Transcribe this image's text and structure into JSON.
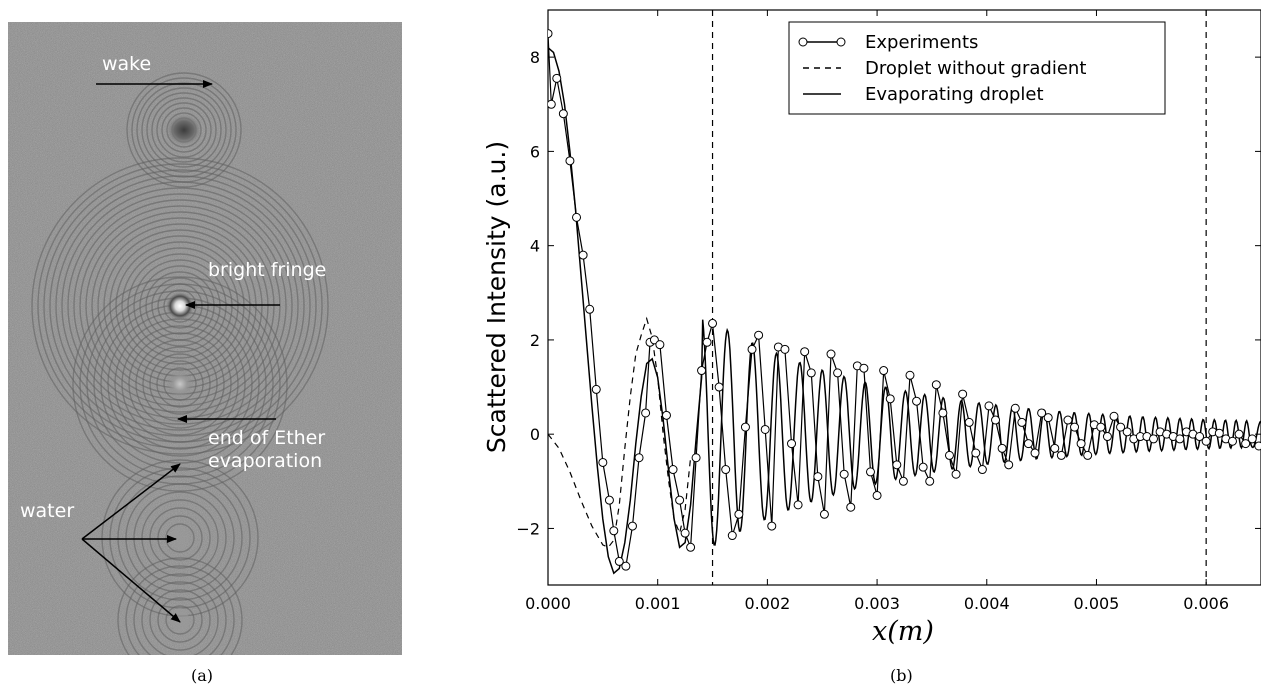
{
  "panel_a": {
    "caption": "(a)",
    "annotations": {
      "wake": "wake",
      "bright_fringe": "bright fringe",
      "end_line1": "end of Ether",
      "end_line2": "evaporation",
      "water": "water"
    }
  },
  "panel_b": {
    "caption": "(b)"
  },
  "chart_data": {
    "type": "line",
    "xlabel": "x(m)",
    "ylabel": "Scattered Intensity (a.u.)",
    "xlim": [
      0,
      0.0065
    ],
    "ylim": [
      -3.2,
      9.0
    ],
    "xticks": [
      0.0,
      0.001,
      0.002,
      0.003,
      0.004,
      0.005,
      0.006
    ],
    "xtick_labels": [
      "0.000",
      "0.001",
      "0.002",
      "0.003",
      "0.004",
      "0.005",
      "0.006"
    ],
    "yticks": [
      -2,
      0,
      2,
      4,
      6,
      8
    ],
    "ytick_labels": [
      "−2",
      "0",
      "2",
      "4",
      "6",
      "8"
    ],
    "vlines": [
      0.0015,
      0.006
    ],
    "legend_position": "top-right",
    "legend": [
      "Experiments",
      "Droplet without gradient",
      "Evaporating droplet"
    ],
    "series": [
      {
        "name": "Experiments",
        "style": "line-with-open-circles",
        "x": [
          0.0,
          3e-05,
          8e-05,
          0.00014,
          0.0002,
          0.00026,
          0.00032,
          0.00038,
          0.00044,
          0.0005,
          0.00056,
          0.0006,
          0.00065,
          0.00071,
          0.00077,
          0.00083,
          0.00089,
          0.00093,
          0.00097,
          0.00102,
          0.00108,
          0.00114,
          0.0012,
          0.00125,
          0.0013,
          0.00135,
          0.0014,
          0.00145,
          0.0015,
          0.00156,
          0.00162,
          0.00168,
          0.00174,
          0.0018,
          0.00186,
          0.00192,
          0.00198,
          0.00204,
          0.0021,
          0.00216,
          0.00222,
          0.00228,
          0.00234,
          0.0024,
          0.00246,
          0.00252,
          0.00258,
          0.00264,
          0.0027,
          0.00276,
          0.00282,
          0.00288,
          0.00294,
          0.003,
          0.00306,
          0.00312,
          0.00318,
          0.00324,
          0.0033,
          0.00336,
          0.00342,
          0.00348,
          0.00354,
          0.0036,
          0.00366,
          0.00372,
          0.00378,
          0.00384,
          0.0039,
          0.00396,
          0.00402,
          0.00408,
          0.00414,
          0.0042,
          0.00426,
          0.00432,
          0.00438,
          0.00444,
          0.0045,
          0.00456,
          0.00462,
          0.00468,
          0.00474,
          0.0048,
          0.00486,
          0.00492,
          0.00498,
          0.00504,
          0.0051,
          0.00516,
          0.00522,
          0.00528,
          0.00534,
          0.0054,
          0.00546,
          0.00552,
          0.00558,
          0.00564,
          0.0057,
          0.00576,
          0.00582,
          0.00588,
          0.00594,
          0.006,
          0.00606,
          0.00612,
          0.00618,
          0.00624,
          0.0063,
          0.00636,
          0.00642,
          0.00648,
          0.00654
        ],
        "y": [
          8.5,
          7.0,
          7.55,
          6.8,
          5.8,
          4.6,
          3.8,
          2.65,
          0.95,
          -0.6,
          -1.4,
          -2.05,
          -2.7,
          -2.8,
          -1.95,
          -0.5,
          0.45,
          1.95,
          2.0,
          1.9,
          0.4,
          -0.75,
          -1.4,
          -2.1,
          -2.4,
          -0.5,
          1.35,
          1.95,
          2.35,
          1.0,
          -0.75,
          -2.15,
          -1.7,
          0.15,
          1.8,
          2.1,
          0.1,
          -1.95,
          1.85,
          1.8,
          -0.2,
          -1.5,
          1.75,
          1.3,
          -0.9,
          -1.7,
          1.7,
          1.3,
          -0.85,
          -1.55,
          1.45,
          1.4,
          -0.8,
          -1.3,
          1.35,
          0.75,
          -0.65,
          -1.0,
          1.25,
          0.7,
          -0.7,
          -1.0,
          1.05,
          0.45,
          -0.45,
          -0.85,
          0.85,
          0.25,
          -0.4,
          -0.75,
          0.6,
          0.3,
          -0.3,
          -0.65,
          0.55,
          0.25,
          -0.2,
          -0.4,
          0.45,
          0.35,
          -0.3,
          -0.45,
          0.3,
          0.15,
          -0.2,
          -0.45,
          0.2,
          0.15,
          -0.05,
          0.38,
          0.15,
          0.05,
          -0.1,
          -0.05,
          -0.05,
          -0.1,
          0.05,
          0.0,
          -0.05,
          -0.1,
          0.05,
          0.0,
          -0.05,
          -0.15,
          0.05,
          0.02,
          -0.1,
          -0.15,
          0.0,
          -0.2,
          -0.1,
          -0.25,
          -0.3
        ]
      },
      {
        "name": "Droplet without gradient",
        "style": "dashed",
        "x": [
          0.0,
          0.0001,
          0.0002,
          0.0003,
          0.0004,
          0.0005,
          0.00055,
          0.0006,
          0.00065,
          0.0007,
          0.00075,
          0.0008,
          0.00085,
          0.0009,
          0.00095,
          0.001,
          0.00105,
          0.0011,
          0.00115,
          0.0012,
          0.00125,
          0.0013
        ],
        "y": [
          0.0,
          -0.3,
          -0.8,
          -1.4,
          -1.95,
          -2.35,
          -2.4,
          -2.25,
          -1.5,
          -0.3,
          0.8,
          1.7,
          2.1,
          2.45,
          2.05,
          1.2,
          0.0,
          -1.0,
          -1.8,
          -2.1,
          -1.6,
          -0.5
        ]
      },
      {
        "name": "Evaporating droplet",
        "style": "solid",
        "x": [
          0.0,
          5e-05,
          0.0001,
          0.00015,
          0.0002,
          0.00025,
          0.0003,
          0.00035,
          0.0004,
          0.00045,
          0.0005,
          0.00055,
          0.0006,
          0.00065,
          0.0007,
          0.00075,
          0.0008,
          0.00085,
          0.0009,
          0.00095,
          0.001,
          0.00105,
          0.0011,
          0.00115,
          0.0012,
          0.00125,
          0.0013,
          0.00135,
          0.0014
        ],
        "y": [
          8.2,
          8.1,
          7.7,
          7.0,
          6.0,
          4.8,
          3.4,
          2.0,
          0.6,
          -0.7,
          -1.8,
          -2.6,
          -2.95,
          -2.85,
          -2.3,
          -1.4,
          -0.2,
          0.8,
          1.5,
          1.6,
          1.2,
          0.3,
          -0.8,
          -1.8,
          -2.4,
          -2.3,
          -1.5,
          -0.1,
          1.2
        ]
      }
    ]
  }
}
